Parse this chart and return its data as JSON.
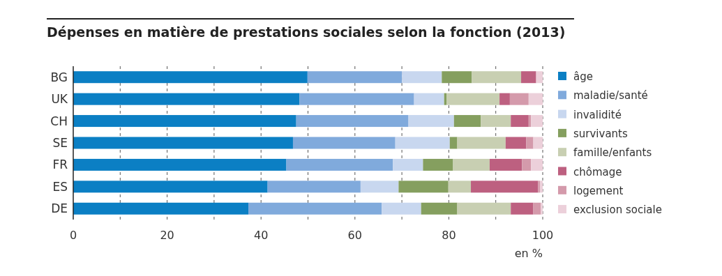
{
  "chart_data": {
    "type": "bar",
    "orientation": "horizontal",
    "stacked": true,
    "title": "Dépenses en matière de prestations sociales selon la fonction (2013)",
    "xlabel": "en %",
    "categories": [
      "BG",
      "UK",
      "CH",
      "SE",
      "FR",
      "ES",
      "DE"
    ],
    "series": [
      {
        "name": "âge",
        "color": "#0b7fc4",
        "values": [
          49.9,
          48.2,
          47.5,
          46.8,
          45.4,
          41.4,
          37.3
        ]
      },
      {
        "name": "maladie/santé",
        "color": "#80aadc",
        "values": [
          20.1,
          24.4,
          23.9,
          21.8,
          22.7,
          19.8,
          28.4
        ]
      },
      {
        "name": "invalidité",
        "color": "#c8d7ef",
        "values": [
          8.5,
          6.4,
          9.7,
          11.6,
          6.4,
          8.1,
          8.4
        ]
      },
      {
        "name": "survivants",
        "color": "#859f5f",
        "values": [
          6.4,
          0.5,
          5.7,
          1.6,
          6.4,
          10.6,
          7.7
        ]
      },
      {
        "name": "famille/enfants",
        "color": "#c8cfb2",
        "values": [
          10.5,
          11.3,
          6.4,
          10.3,
          7.8,
          4.8,
          11.4
        ]
      },
      {
        "name": "chômage",
        "color": "#bd6080",
        "values": [
          3.2,
          2.2,
          3.8,
          4.4,
          6.9,
          14.3,
          4.8
        ]
      },
      {
        "name": "logement",
        "color": "#d49aab",
        "values": [
          null,
          4.0,
          0.5,
          1.5,
          1.9,
          0.4,
          1.6
        ]
      },
      {
        "name": "exclusion sociale",
        "color": "#ecd0da",
        "values": [
          1.4,
          3.0,
          2.5,
          2.0,
          2.5,
          0.6,
          0.4
        ]
      }
    ],
    "xlim": [
      0,
      100
    ],
    "xticks": [
      0,
      {
        "value": 10,
        "label": null
      },
      20,
      {
        "value": 30,
        "label": null
      },
      40,
      {
        "value": 50,
        "label": null
      },
      60,
      {
        "value": 70,
        "label": null
      },
      80,
      {
        "value": 90,
        "label": null
      },
      100
    ],
    "grid": "x",
    "legend": "right"
  }
}
